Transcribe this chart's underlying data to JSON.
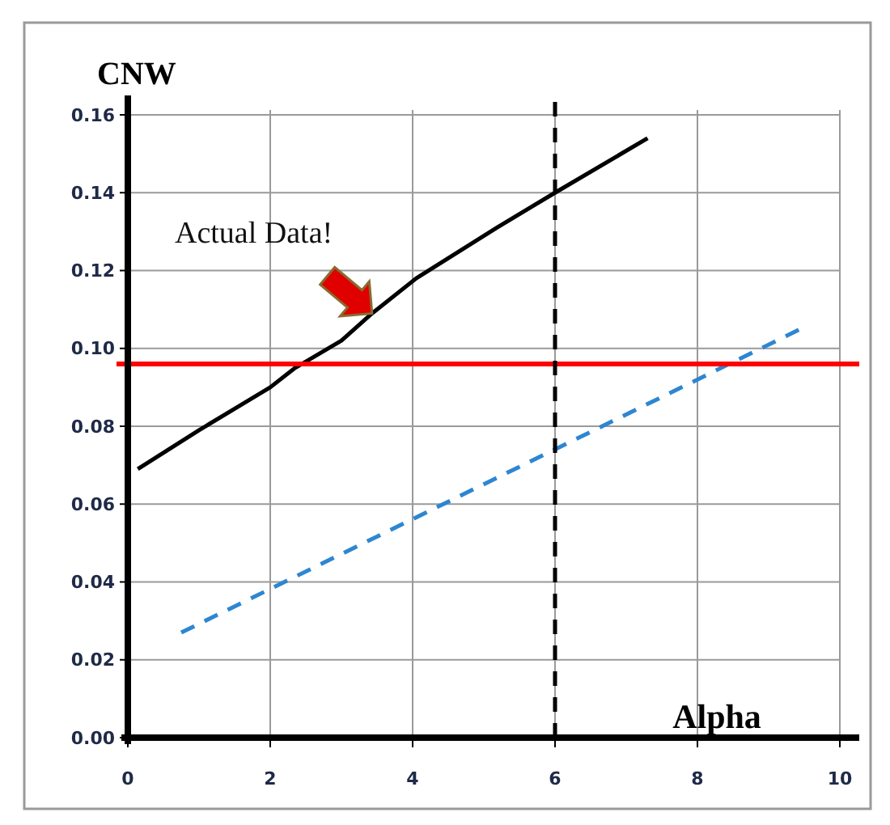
{
  "chart_data": {
    "type": "line",
    "ylabel": "CNW",
    "xlabel": "Alpha",
    "xlim": [
      0,
      10
    ],
    "xticks": [
      0,
      2,
      4,
      6,
      8,
      10
    ],
    "ylim": [
      0,
      0.16
    ],
    "yticks": [
      {
        "value": 0,
        "label": "0.00"
      },
      {
        "value": 0.02,
        "label": "0.02"
      },
      {
        "value": 0.04,
        "label": "0.04"
      },
      {
        "value": 0.06,
        "label": "0.06"
      },
      {
        "value": 0.08,
        "label": "0.08"
      },
      {
        "value": 0.1,
        "label": "0.10"
      },
      {
        "value": 0.12,
        "label": "0.12"
      },
      {
        "value": 0.14,
        "label": "0.14"
      },
      {
        "value": 0.16,
        "label": "0.16"
      }
    ],
    "grid": true,
    "series": [
      {
        "color": "#000000",
        "line_style": "solid",
        "x": [
          0.14,
          1,
          2,
          2.35,
          3,
          3.43,
          4.05,
          5.18,
          6,
          7.3
        ],
        "values": [
          0.069,
          0.079,
          0.09,
          0.095,
          0.102,
          0.109,
          0.118,
          0.131,
          0.14,
          0.154
        ]
      },
      {
        "color": "#2e86d1",
        "line_style": "dashed",
        "x": [
          0.75,
          9.45
        ],
        "values": [
          0.027,
          0.105
        ]
      }
    ],
    "ref_lines": [
      {
        "axis": "y",
        "value": 0.096,
        "color": "#ff0000",
        "line_style": "solid"
      },
      {
        "axis": "x",
        "value": 6,
        "color": "#000000",
        "line_style": "dashed"
      }
    ],
    "annotations": [
      {
        "text": "Actual Data!",
        "x": 3.43,
        "y": 0.109
      }
    ]
  }
}
